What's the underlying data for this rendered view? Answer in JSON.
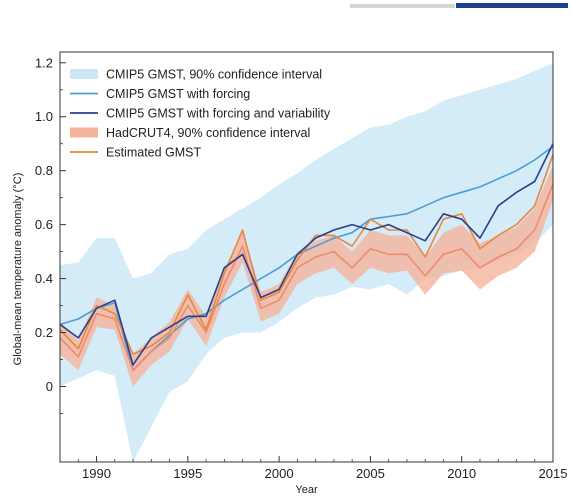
{
  "header": {
    "tab_inactive_color": "#d4d4d4",
    "tab_active_color": "#1f3f8f"
  },
  "chart_data": {
    "type": "line",
    "title": "",
    "xlabel": "Year",
    "ylabel": "Global-mean temperature anomaly (°C)",
    "xlim": [
      1988,
      2015
    ],
    "ylim": [
      -0.28,
      1.24
    ],
    "x_ticks": [
      1990,
      1995,
      2000,
      2005,
      2010,
      2015
    ],
    "y_ticks": [
      0,
      0.2,
      0.4,
      0.6,
      0.8,
      1.0,
      1.2
    ],
    "legend_position": "top-left",
    "legend": [
      {
        "label": "CMIP5 GMST, 90% confidence interval",
        "kind": "band",
        "color": "#cde7f7"
      },
      {
        "label": "CMIP5 GMST with forcing",
        "kind": "line",
        "color": "#4a9fd4"
      },
      {
        "label": "CMIP5 GMST with forcing and variability",
        "kind": "line",
        "color": "#2b3f8c"
      },
      {
        "label": "HadCRUT4, 90% confidence interval",
        "kind": "band",
        "color": "#f4b49c"
      },
      {
        "label": "Estimated GMST",
        "kind": "line",
        "color": "#e8883c"
      }
    ],
    "x": [
      1988,
      1989,
      1990,
      1991,
      1992,
      1993,
      1994,
      1995,
      1996,
      1997,
      1998,
      1999,
      2000,
      2001,
      2002,
      2003,
      2004,
      2005,
      2006,
      2007,
      2008,
      2009,
      2010,
      2011,
      2012,
      2013,
      2014,
      2015
    ],
    "series": [
      {
        "name": "CMIP5 GMST, 90% confidence interval",
        "kind": "band",
        "color": "#cde7f7",
        "lower": [
          0.0,
          0.03,
          0.06,
          0.04,
          -0.28,
          -0.15,
          -0.02,
          0.02,
          0.12,
          0.18,
          0.2,
          0.2,
          0.24,
          0.29,
          0.33,
          0.34,
          0.37,
          0.36,
          0.38,
          0.34,
          0.4,
          0.41,
          0.43,
          0.44,
          0.47,
          0.49,
          0.53,
          0.6
        ],
        "upper": [
          0.45,
          0.46,
          0.55,
          0.55,
          0.4,
          0.42,
          0.49,
          0.51,
          0.58,
          0.62,
          0.66,
          0.7,
          0.75,
          0.79,
          0.84,
          0.88,
          0.92,
          0.96,
          0.97,
          1.0,
          1.02,
          1.06,
          1.08,
          1.1,
          1.12,
          1.14,
          1.17,
          1.2
        ]
      },
      {
        "name": "HadCRUT4, 90% confidence interval",
        "kind": "band",
        "color": "#f4b49c",
        "lower": [
          0.12,
          0.06,
          0.22,
          0.21,
          0.0,
          0.08,
          0.13,
          0.25,
          0.15,
          0.33,
          0.46,
          0.24,
          0.27,
          0.38,
          0.42,
          0.44,
          0.38,
          0.44,
          0.42,
          0.43,
          0.34,
          0.42,
          0.43,
          0.36,
          0.41,
          0.44,
          0.5,
          0.69
        ]
      },
      {
        "name": "HadCRUT4, 90% confidence interval (upper)",
        "kind": "band-upper",
        "color": "#f4b49c",
        "upper": [
          0.24,
          0.17,
          0.33,
          0.3,
          0.12,
          0.18,
          0.24,
          0.36,
          0.26,
          0.43,
          0.58,
          0.35,
          0.38,
          0.5,
          0.54,
          0.56,
          0.5,
          0.58,
          0.56,
          0.56,
          0.48,
          0.57,
          0.6,
          0.53,
          0.56,
          0.59,
          0.66,
          0.82
        ]
      },
      {
        "name": "CMIP5 GMST with forcing",
        "kind": "line",
        "color": "#4a9fd4",
        "values": [
          0.23,
          0.25,
          0.29,
          0.31,
          0.06,
          0.13,
          0.19,
          0.25,
          0.27,
          0.32,
          0.36,
          0.4,
          0.44,
          0.49,
          0.52,
          0.55,
          0.57,
          0.62,
          0.63,
          0.64,
          0.67,
          0.7,
          0.72,
          0.74,
          0.77,
          0.8,
          0.84,
          0.89
        ]
      },
      {
        "name": "Estimated GMST",
        "kind": "line",
        "color": "#e8883c",
        "values": [
          0.21,
          0.14,
          0.3,
          0.27,
          0.12,
          0.15,
          0.2,
          0.34,
          0.21,
          0.42,
          0.58,
          0.32,
          0.35,
          0.47,
          0.56,
          0.56,
          0.52,
          0.62,
          0.58,
          0.58,
          0.48,
          0.62,
          0.64,
          0.51,
          0.56,
          0.6,
          0.67,
          0.86
        ]
      },
      {
        "name": "HadCRUT4 central estimate",
        "kind": "line",
        "color": "#f08a6c",
        "values": [
          0.18,
          0.11,
          0.27,
          0.25,
          0.06,
          0.13,
          0.18,
          0.3,
          0.2,
          0.38,
          0.52,
          0.29,
          0.32,
          0.44,
          0.48,
          0.5,
          0.44,
          0.51,
          0.49,
          0.49,
          0.41,
          0.49,
          0.51,
          0.44,
          0.48,
          0.51,
          0.58,
          0.75
        ]
      },
      {
        "name": "CMIP5 GMST with forcing and variability",
        "kind": "line",
        "color": "#2b3f8c",
        "values": [
          0.23,
          0.18,
          0.29,
          0.32,
          0.08,
          0.18,
          0.22,
          0.26,
          0.26,
          0.44,
          0.49,
          0.33,
          0.36,
          0.49,
          0.55,
          0.58,
          0.6,
          0.58,
          0.6,
          0.57,
          0.54,
          0.64,
          0.62,
          0.55,
          0.67,
          0.72,
          0.76,
          0.9
        ]
      }
    ]
  }
}
